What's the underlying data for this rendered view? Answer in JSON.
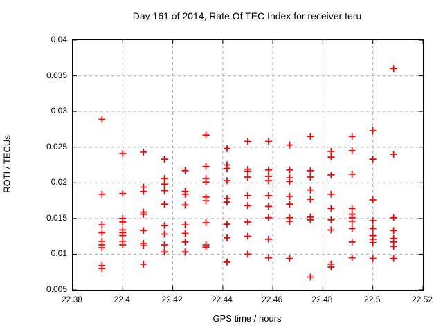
{
  "chart_data": {
    "type": "scatter",
    "title": "Day 161 of 2014, Rate Of TEC Index for receiver teru",
    "xlabel": "GPS time / hours",
    "ylabel": "ROTI / TECUs",
    "xlim": [
      22.38,
      22.52
    ],
    "ylim": [
      0.005,
      0.04
    ],
    "x_ticks": [
      22.38,
      22.4,
      22.42,
      22.44,
      22.46,
      22.48,
      22.5,
      22.52
    ],
    "x_tick_labels": [
      "22.38",
      "22.4",
      "22.42",
      "22.44",
      "22.46",
      "22.48",
      "22.5",
      "22.52"
    ],
    "y_ticks": [
      0.005,
      0.01,
      0.015,
      0.02,
      0.025,
      0.03,
      0.035,
      0.04
    ],
    "y_tick_labels": [
      "0.005",
      "0.01",
      "0.015",
      "0.02",
      "0.025",
      "0.03",
      "0.035",
      "0.04"
    ],
    "grid": true,
    "legend": false,
    "marker": "plus",
    "marker_color": "#ff0000",
    "grid_color": "#a9a9a9",
    "axis_color": "#000000",
    "columns": [
      {
        "x": 22.3917,
        "y": [
          0.0289,
          0.0184,
          0.0141,
          0.013,
          0.0118,
          0.0113,
          0.0109,
          0.0084,
          0.008
        ]
      },
      {
        "x": 22.4,
        "y": [
          0.0241,
          0.0185,
          0.015,
          0.0145,
          0.0134,
          0.013,
          0.0126,
          0.0118,
          0.0113
        ]
      },
      {
        "x": 22.4083,
        "y": [
          0.0243,
          0.0194,
          0.0188,
          0.0159,
          0.0156,
          0.0133,
          0.0115,
          0.0112,
          0.0086
        ]
      },
      {
        "x": 22.4167,
        "y": [
          0.0233,
          0.0206,
          0.0198,
          0.0189,
          0.017,
          0.014,
          0.0128,
          0.0113,
          0.0103
        ]
      },
      {
        "x": 22.425,
        "y": [
          0.0217,
          0.0188,
          0.0184,
          0.0169,
          0.0141,
          0.0129,
          0.0117,
          0.0103
        ]
      },
      {
        "x": 22.4333,
        "y": [
          0.0267,
          0.0223,
          0.0206,
          0.0201,
          0.018,
          0.0175,
          0.0144,
          0.0113,
          0.011
        ]
      },
      {
        "x": 22.4417,
        "y": [
          0.0248,
          0.0225,
          0.022,
          0.0203,
          0.0178,
          0.0173,
          0.0142,
          0.0123,
          0.0089
        ]
      },
      {
        "x": 22.45,
        "y": [
          0.0258,
          0.0219,
          0.0216,
          0.0208,
          0.0182,
          0.0168,
          0.0145,
          0.0125,
          0.01
        ]
      },
      {
        "x": 22.4583,
        "y": [
          0.0258,
          0.0218,
          0.0209,
          0.0203,
          0.0182,
          0.0167,
          0.0151,
          0.0121,
          0.0095
        ]
      },
      {
        "x": 22.4667,
        "y": [
          0.0253,
          0.0218,
          0.0207,
          0.0202,
          0.0181,
          0.017,
          0.0151,
          0.0146,
          0.0094
        ]
      },
      {
        "x": 22.475,
        "y": [
          0.0265,
          0.0217,
          0.0208,
          0.019,
          0.0177,
          0.0152,
          0.0148,
          0.0068
        ]
      },
      {
        "x": 22.4833,
        "y": [
          0.0244,
          0.0236,
          0.0211,
          0.0184,
          0.0164,
          0.0148,
          0.0134,
          0.0086,
          0.0082
        ]
      },
      {
        "x": 22.4917,
        "y": [
          0.0265,
          0.0245,
          0.0212,
          0.0164,
          0.0156,
          0.0151,
          0.0146,
          0.0136,
          0.0117,
          0.0095
        ]
      },
      {
        "x": 22.5,
        "y": [
          0.0273,
          0.0233,
          0.0176,
          0.0147,
          0.0136,
          0.0126,
          0.0121,
          0.0116,
          0.0094
        ]
      },
      {
        "x": 22.5083,
        "y": [
          0.036,
          0.024,
          0.0151,
          0.0133,
          0.0122,
          0.0117,
          0.0111,
          0.0094
        ]
      }
    ]
  }
}
